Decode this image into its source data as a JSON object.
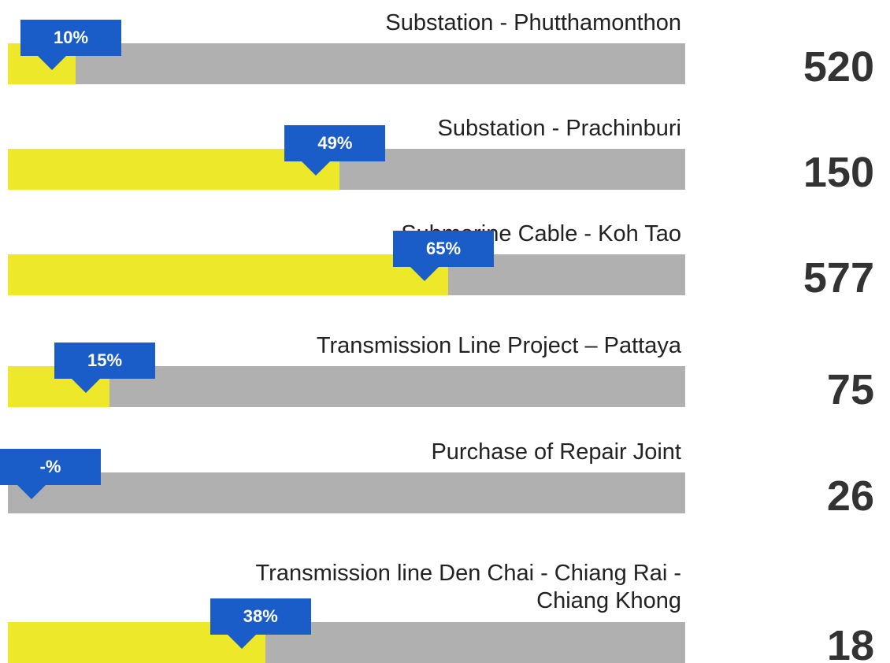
{
  "chart_data": {
    "type": "progress",
    "categories": [
      "Substation - Phutthamonthon",
      "Substation - Prachinburi",
      "Submarine Cable - Koh Tao",
      "Transmission Line Project – Pattaya",
      "Purchase of Repair Joint",
      "Transmission line Den Chai - Chiang Rai - Chiang Khong"
    ],
    "values": [
      10,
      49,
      65,
      15,
      null,
      38
    ],
    "value_labels": [
      "10%",
      "49%",
      "65%",
      "15%",
      "-%",
      "38%"
    ],
    "totals": [
      "520",
      "150",
      "577",
      "75",
      "26",
      "18"
    ],
    "xlim": [
      0,
      100
    ],
    "color": "#eee82a",
    "track_color": "#b0b0b0",
    "callout_color": "#1a5cc8"
  }
}
